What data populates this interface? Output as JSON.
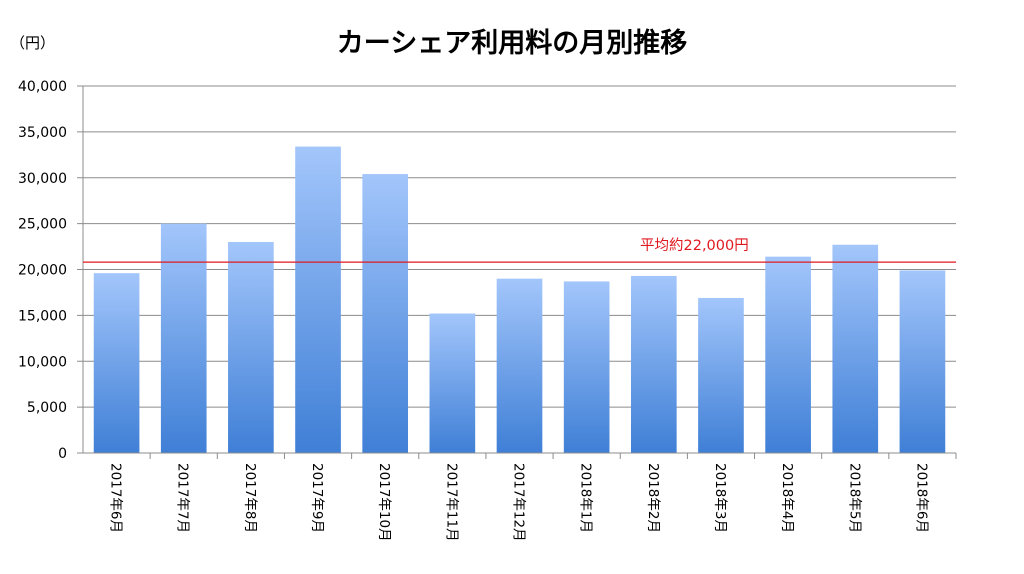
{
  "chart_data": {
    "type": "bar",
    "title": "カーシェア利用料の月別推移",
    "unit_label": "（円）",
    "categories": [
      "2017年6月",
      "2017年7月",
      "2017年8月",
      "2017年9月",
      "2017年10月",
      "2017年11月",
      "2017年12月",
      "2018年1月",
      "2018年2月",
      "2018年3月",
      "2018年4月",
      "2018年5月",
      "2018年6月"
    ],
    "series": [
      {
        "values": [
          19600,
          25000,
          23000,
          33400,
          30400,
          15200,
          19000,
          18700,
          19300,
          16900,
          21400,
          22700,
          19900
        ]
      }
    ],
    "ylim": [
      0,
      40000
    ],
    "yticks": [
      0,
      5000,
      10000,
      15000,
      20000,
      25000,
      30000,
      35000,
      40000
    ],
    "ytick_labels": [
      "0",
      "5,000",
      "10,000",
      "15,000",
      "20,000",
      "25,000",
      "30,000",
      "35,000",
      "40,000"
    ],
    "grid": true,
    "legend": "none",
    "reference_line": {
      "value": 20800,
      "label": "平均約22,000円",
      "color": "#e0191f"
    },
    "bar_color_top": "#a3c6fb",
    "bar_color_bottom": "#3f7fd6"
  }
}
